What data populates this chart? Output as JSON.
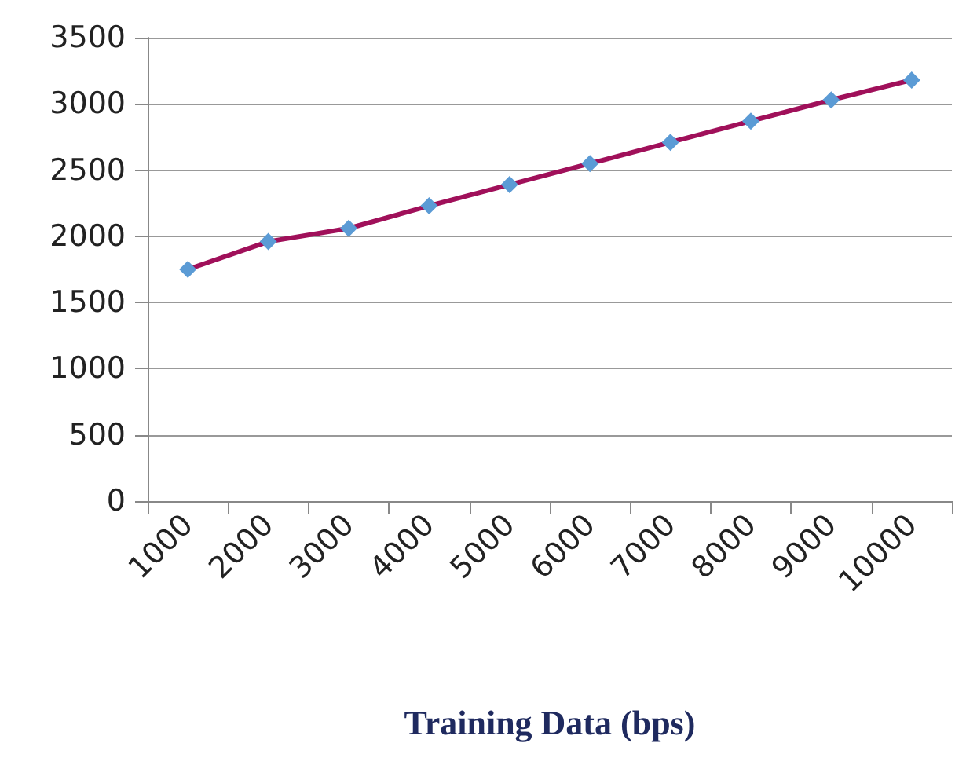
{
  "chart_data": {
    "type": "line",
    "xlabel": "Training Data (bps)",
    "categories": [
      "1000",
      "2000",
      "3000",
      "4000",
      "5000",
      "6000",
      "7000",
      "8000",
      "9000",
      "10000"
    ],
    "series": [
      {
        "color": "#a0105a",
        "colors": [
          "#5b9bd5",
          "#5b9bd5",
          "#5b9bd5",
          "#5b9bd5",
          "#5b9bd5",
          "#5b9bd5",
          "#5b9bd5",
          "#5b9bd5",
          "#5b9bd5",
          "#5b9bd5"
        ],
        "values": [
          1750,
          1960,
          2060,
          2230,
          2390,
          2550,
          2710,
          2870,
          3030,
          3180
        ]
      }
    ],
    "ylim": [
      0,
      3500
    ],
    "yticks": [
      0,
      500,
      1000,
      1500,
      2000,
      2500,
      3000,
      3500
    ],
    "grid": "y",
    "marker": "diamond",
    "line_style": "solid"
  }
}
